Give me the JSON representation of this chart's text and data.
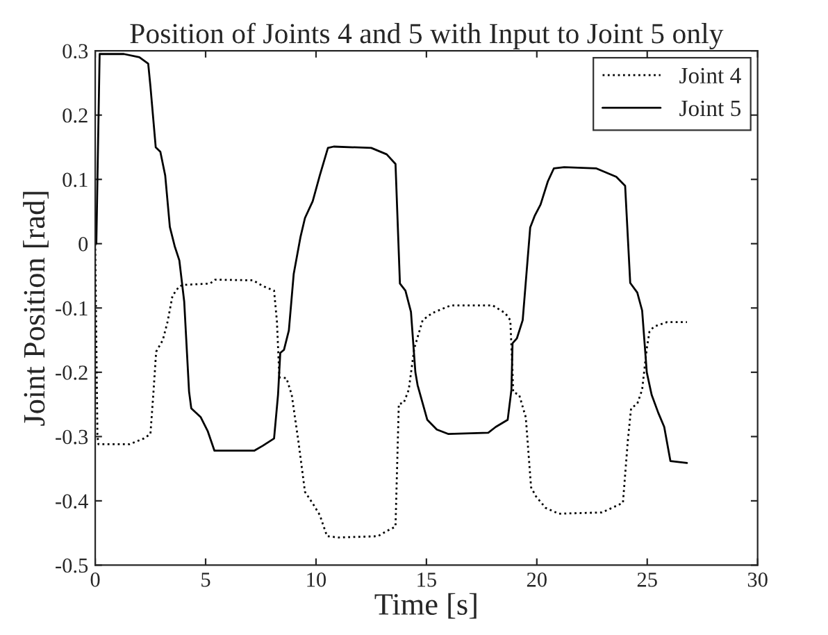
{
  "chart_data": {
    "type": "line",
    "title": "Position of Joints 4 and 5 with Input to Joint 5 only",
    "xlabel": "Time [s]",
    "ylabel": "Joint Position [rad]",
    "xlim": [
      0,
      30
    ],
    "xticks": [
      0,
      5,
      10,
      15,
      20,
      25,
      30
    ],
    "ylim": [
      -0.5,
      0.3
    ],
    "yticks": [
      -0.5,
      -0.4,
      -0.3,
      -0.2,
      -0.1,
      0,
      0.1,
      0.2,
      0.3
    ],
    "grid": false,
    "legend": "top right",
    "series": [
      {
        "name": "Joint 4",
        "color": "#000000",
        "line_style": "dotted",
        "x": [
          0,
          0.1,
          0.15,
          1.55,
          2.2,
          2.5,
          2.63,
          2.76,
          3.06,
          3.28,
          3.5,
          3.81,
          4.03,
          5.2,
          5.43,
          7.15,
          7.6,
          8.1,
          8.23,
          8.34,
          8.66,
          8.9,
          9.2,
          9.5,
          9.85,
          10.17,
          10.5,
          11.03,
          12.8,
          13.2,
          13.6,
          13.75,
          13.97,
          14.2,
          14.45,
          14.83,
          15.26,
          16.1,
          18.0,
          18.57,
          18.8,
          18.9,
          18.93,
          19.2,
          19.5,
          19.74,
          19.96,
          20.4,
          21.0,
          22.95,
          23.4,
          23.9,
          24.12,
          24.27,
          24.55,
          24.77,
          24.98,
          25.1,
          25.3,
          25.9,
          26.8
        ],
        "values": [
          0,
          -0.3,
          -0.312,
          -0.312,
          -0.303,
          -0.296,
          -0.235,
          -0.168,
          -0.15,
          -0.121,
          -0.081,
          -0.066,
          -0.064,
          -0.062,
          -0.056,
          -0.057,
          -0.066,
          -0.073,
          -0.121,
          -0.208,
          -0.209,
          -0.235,
          -0.307,
          -0.386,
          -0.404,
          -0.422,
          -0.455,
          -0.457,
          -0.455,
          -0.447,
          -0.44,
          -0.249,
          -0.248,
          -0.227,
          -0.163,
          -0.119,
          -0.108,
          -0.096,
          -0.096,
          -0.108,
          -0.119,
          -0.2,
          -0.231,
          -0.235,
          -0.27,
          -0.379,
          -0.393,
          -0.411,
          -0.42,
          -0.418,
          -0.411,
          -0.403,
          -0.307,
          -0.256,
          -0.249,
          -0.227,
          -0.163,
          -0.137,
          -0.129,
          -0.122,
          -0.122
        ]
      },
      {
        "name": "Joint 5",
        "color": "#000000",
        "line_style": "solid",
        "x": [
          0.05,
          0.2,
          1.3,
          2.0,
          2.4,
          2.5,
          2.74,
          2.95,
          3.17,
          3.38,
          3.6,
          3.81,
          4.03,
          4.25,
          4.35,
          4.78,
          5.1,
          5.4,
          7.2,
          7.6,
          8.1,
          8.28,
          8.38,
          8.55,
          8.77,
          8.99,
          9.3,
          9.5,
          9.85,
          10.17,
          10.54,
          10.8,
          12.5,
          13.2,
          13.6,
          13.8,
          14.05,
          14.3,
          14.5,
          14.6,
          15.04,
          15.47,
          16.0,
          17.8,
          18.14,
          18.68,
          18.85,
          18.9,
          19.1,
          19.36,
          19.53,
          19.7,
          19.9,
          20.17,
          20.5,
          20.77,
          21.24,
          22.7,
          23.6,
          24.0,
          24.23,
          24.55,
          24.77,
          24.98,
          25.2,
          25.5,
          25.77,
          26.05,
          26.8
        ],
        "values": [
          0,
          0.295,
          0.295,
          0.29,
          0.28,
          0.245,
          0.15,
          0.143,
          0.106,
          0.026,
          -0.004,
          -0.026,
          -0.09,
          -0.23,
          -0.256,
          -0.27,
          -0.292,
          -0.322,
          -0.322,
          -0.314,
          -0.303,
          -0.235,
          -0.17,
          -0.165,
          -0.135,
          -0.047,
          0.011,
          0.04,
          0.066,
          0.106,
          0.149,
          0.151,
          0.149,
          0.139,
          0.124,
          -0.062,
          -0.073,
          -0.106,
          -0.2,
          -0.22,
          -0.274,
          -0.289,
          -0.296,
          -0.294,
          -0.285,
          -0.274,
          -0.227,
          -0.155,
          -0.147,
          -0.119,
          -0.047,
          0.025,
          0.043,
          0.061,
          0.097,
          0.117,
          0.119,
          0.117,
          0.104,
          0.09,
          -0.061,
          -0.076,
          -0.104,
          -0.2,
          -0.235,
          -0.263,
          -0.285,
          -0.338,
          -0.341
        ]
      }
    ]
  }
}
